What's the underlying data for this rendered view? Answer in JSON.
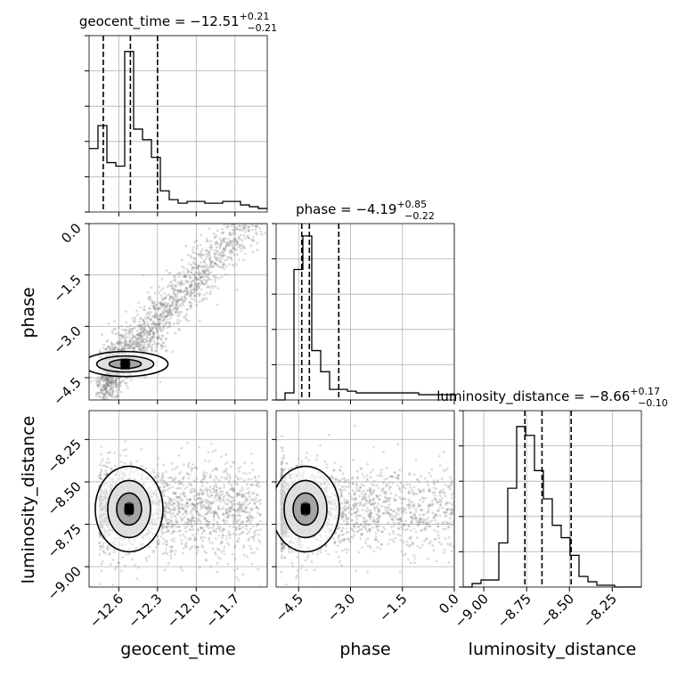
{
  "chart_data": {
    "type": "corner",
    "parameters": [
      "geocent_time",
      "phase",
      "luminosity_distance"
    ],
    "titles": [
      {
        "param": "geocent_time",
        "text": "geocent_time = −12.51",
        "sup": "+0.21",
        "sub": "−0.21"
      },
      {
        "param": "phase",
        "text": "phase = −4.19",
        "sup": "+0.85",
        "sub": "−0.22"
      },
      {
        "param": "luminosity_distance",
        "text": "luminosity_distance = −8.66",
        "sup": "+0.17",
        "sub": "−0.10"
      }
    ],
    "ranges": {
      "geocent_time": [
        -12.83,
        -11.45
      ],
      "phase": [
        -5.15,
        0.0
      ],
      "luminosity_distance": [
        -9.12,
        -8.08
      ]
    },
    "ticks": {
      "geocent_time": {
        "values": [
          -12.6,
          -12.3,
          -12.0,
          -11.7
        ],
        "labels": [
          "−12.6",
          "−12.3",
          "−12.0",
          "−11.7"
        ]
      },
      "phase": {
        "values": [
          -4.5,
          -3.0,
          -1.5,
          0.0
        ],
        "labels": [
          "−4.5",
          "−3.0",
          "−1.5",
          "0.0"
        ]
      },
      "luminosity_distance": {
        "values": [
          -9.0,
          -8.75,
          -8.5,
          -8.25
        ],
        "labels": [
          "−9.00",
          "−8.75",
          "−8.50",
          "−8.25"
        ]
      }
    },
    "quantiles": {
      "geocent_time": [
        -12.72,
        -12.51,
        -12.3
      ],
      "phase": [
        -4.41,
        -4.19,
        -3.34
      ],
      "luminosity_distance": [
        -8.76,
        -8.66,
        -8.49
      ]
    },
    "histograms": {
      "geocent_time": {
        "edges_range": [
          -12.83,
          -11.45
        ],
        "counts": [
          0.36,
          0.49,
          0.28,
          0.26,
          0.91,
          0.47,
          0.41,
          0.31,
          0.12,
          0.07,
          0.05,
          0.06,
          0.06,
          0.05,
          0.05,
          0.06,
          0.06,
          0.04,
          0.03,
          0.02
        ]
      },
      "phase": {
        "edges_range": [
          -5.15,
          0.0
        ],
        "counts": [
          0.0,
          0.04,
          0.74,
          0.93,
          0.28,
          0.16,
          0.06,
          0.06,
          0.05,
          0.04,
          0.04,
          0.04,
          0.04,
          0.04,
          0.04,
          0.04,
          0.03,
          0.03,
          0.03,
          0.03
        ]
      },
      "luminosity_distance": {
        "edges_range": [
          -9.12,
          -8.08
        ],
        "counts": [
          0.0,
          0.02,
          0.04,
          0.04,
          0.25,
          0.56,
          0.91,
          0.86,
          0.66,
          0.5,
          0.35,
          0.28,
          0.18,
          0.06,
          0.03,
          0.01,
          0.01,
          0.0,
          0.0,
          0.0
        ]
      }
    },
    "samples_2d": [
      {
        "x": "geocent_time",
        "y": "phase",
        "n": 2000,
        "relation": "linear",
        "x_center": -12.55,
        "y_center": -4.1
      },
      {
        "x": "geocent_time",
        "y": "luminosity_distance",
        "n": 2000,
        "relation": "independent",
        "x_center": -12.52,
        "y_center": -8.66
      },
      {
        "x": "phase",
        "y": "luminosity_distance",
        "n": 2000,
        "relation": "independent",
        "x_center": -4.3,
        "y_center": -8.66
      }
    ],
    "grid": true,
    "xlabel": "geocent_time"
  }
}
